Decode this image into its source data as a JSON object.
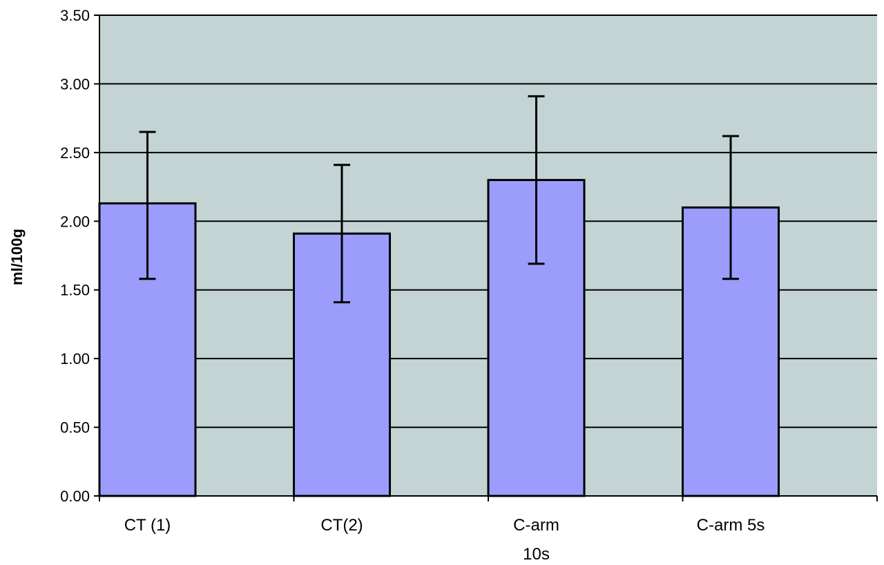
{
  "chart_data": {
    "type": "bar",
    "title": "",
    "xlabel": "",
    "ylabel": "ml/100g",
    "ylim": [
      0,
      3.5
    ],
    "yticks": [
      "0.00",
      "0.50",
      "1.00",
      "1.50",
      "2.00",
      "2.50",
      "3.00",
      "3.50"
    ],
    "categories": [
      [
        "CT (1)"
      ],
      [
        "CT(2)"
      ],
      [
        "C-arm",
        "10s"
      ],
      [
        "C-arm 5s"
      ]
    ],
    "values": [
      2.13,
      1.91,
      2.3,
      2.1
    ],
    "error_low": [
      1.58,
      1.41,
      1.69,
      1.58
    ],
    "error_high": [
      2.65,
      2.41,
      2.91,
      2.62
    ],
    "grid": true,
    "legend": "none",
    "colors": {
      "bar_fill": "#9c9cfc",
      "bar_stroke": "#000000",
      "plot_background": "#c4d3d3",
      "gridline": "#000000",
      "error_bar": "#000000"
    }
  }
}
